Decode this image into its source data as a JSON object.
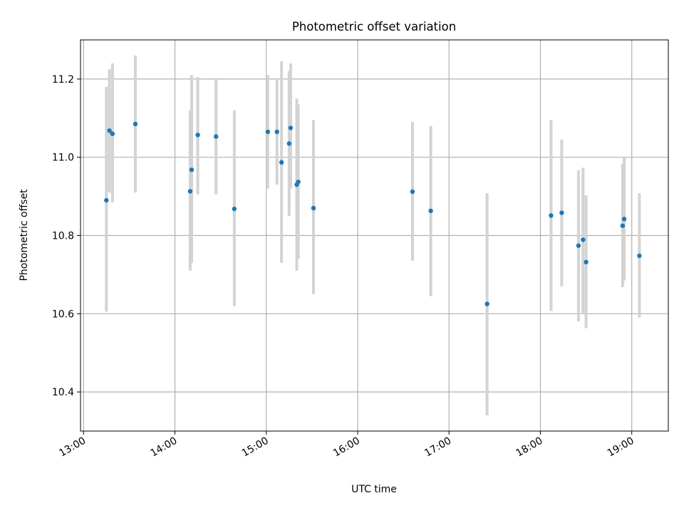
{
  "chart_data": {
    "type": "scatter",
    "title": "Photometric offset variation",
    "xlabel": "UTC time",
    "ylabel": "Photometric offset",
    "x_axis_format": "HH:MM",
    "x_ticks": [
      "13:00",
      "14:00",
      "15:00",
      "16:00",
      "17:00",
      "18:00",
      "19:00"
    ],
    "y_ticks": [
      "10.4",
      "10.6",
      "10.8",
      "11.0",
      "11.2"
    ],
    "xlim": [
      "12:58",
      "19:24"
    ],
    "ylim": [
      10.3,
      11.3
    ],
    "grid": true,
    "colors": {
      "marker": "#1f77b4",
      "errorbar": "#d3d3d3",
      "grid": "#b0b0b0"
    },
    "points": [
      {
        "x": "13:15",
        "y": 10.89,
        "lo": 10.605,
        "hi": 11.18
      },
      {
        "x": "13:17",
        "y": 11.068,
        "lo": 10.91,
        "hi": 11.225
      },
      {
        "x": "13:19",
        "y": 11.06,
        "lo": 10.885,
        "hi": 11.24
      },
      {
        "x": "13:34",
        "y": 11.085,
        "lo": 10.91,
        "hi": 11.26
      },
      {
        "x": "14:10",
        "y": 10.913,
        "lo": 10.71,
        "hi": 11.12
      },
      {
        "x": "14:11",
        "y": 10.968,
        "lo": 10.73,
        "hi": 11.21
      },
      {
        "x": "14:15",
        "y": 11.057,
        "lo": 10.905,
        "hi": 11.205
      },
      {
        "x": "14:27",
        "y": 11.053,
        "lo": 10.905,
        "hi": 11.2
      },
      {
        "x": "14:39",
        "y": 10.868,
        "lo": 10.62,
        "hi": 11.12
      },
      {
        "x": "15:01",
        "y": 11.065,
        "lo": 10.92,
        "hi": 11.21
      },
      {
        "x": "15:07",
        "y": 11.065,
        "lo": 10.93,
        "hi": 11.2
      },
      {
        "x": "15:10",
        "y": 10.987,
        "lo": 10.73,
        "hi": 11.245
      },
      {
        "x": "15:15",
        "y": 11.035,
        "lo": 10.85,
        "hi": 11.22
      },
      {
        "x": "15:16",
        "y": 11.075,
        "lo": 10.92,
        "hi": 11.24
      },
      {
        "x": "15:20",
        "y": 10.93,
        "lo": 10.71,
        "hi": 11.15
      },
      {
        "x": "15:21",
        "y": 10.937,
        "lo": 10.74,
        "hi": 11.135
      },
      {
        "x": "15:31",
        "y": 10.87,
        "lo": 10.65,
        "hi": 11.095
      },
      {
        "x": "16:36",
        "y": 10.912,
        "lo": 10.735,
        "hi": 11.09
      },
      {
        "x": "16:48",
        "y": 10.863,
        "lo": 10.645,
        "hi": 11.08
      },
      {
        "x": "17:25",
        "y": 10.625,
        "lo": 10.34,
        "hi": 10.908
      },
      {
        "x": "18:07",
        "y": 10.851,
        "lo": 10.607,
        "hi": 11.095
      },
      {
        "x": "18:14",
        "y": 10.858,
        "lo": 10.67,
        "hi": 11.045
      },
      {
        "x": "18:25",
        "y": 10.774,
        "lo": 10.58,
        "hi": 10.967
      },
      {
        "x": "18:28",
        "y": 10.789,
        "lo": 10.6,
        "hi": 10.973
      },
      {
        "x": "18:30",
        "y": 10.732,
        "lo": 10.563,
        "hi": 10.903
      },
      {
        "x": "18:54",
        "y": 10.825,
        "lo": 10.668,
        "hi": 10.983
      },
      {
        "x": "18:55",
        "y": 10.842,
        "lo": 10.685,
        "hi": 11.0
      },
      {
        "x": "19:05",
        "y": 10.748,
        "lo": 10.59,
        "hi": 10.908
      }
    ]
  }
}
